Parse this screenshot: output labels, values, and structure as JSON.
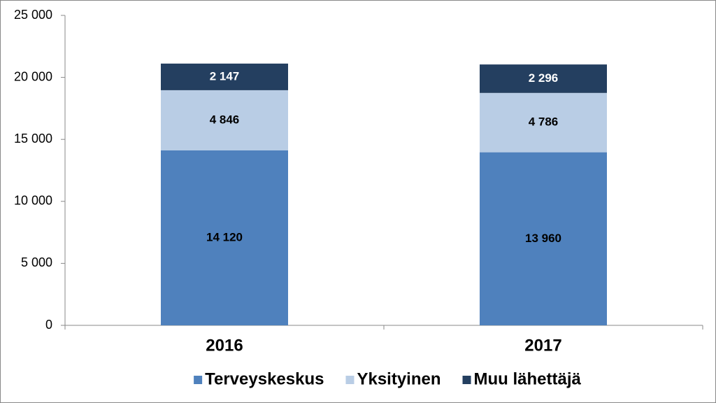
{
  "chart_data": {
    "type": "stacked-bar",
    "categories": [
      "2016",
      "2017"
    ],
    "series": [
      {
        "name": "Terveyskeskus",
        "color": "#4f81bd",
        "values": [
          14120,
          13960
        ],
        "value_labels": [
          "14 120",
          "13 960"
        ]
      },
      {
        "name": "Yksityinen",
        "color": "#b9cde5",
        "values": [
          4846,
          4786
        ],
        "value_labels": [
          "4 846",
          "4 786"
        ]
      },
      {
        "name": "Muu lähettäjä",
        "color": "#243f60",
        "values": [
          2147,
          2296
        ],
        "value_labels": [
          "2 147",
          "2 296"
        ]
      }
    ],
    "ylim": [
      0,
      25000
    ],
    "yticks": [
      0,
      {
        "value": 5000,
        "label": "5 000"
      },
      {
        "value": 10000,
        "label": "10 000"
      },
      {
        "value": 15000,
        "label": "15 000"
      },
      {
        "value": 20000,
        "label": "20 000"
      },
      {
        "value": 25000,
        "label": "25 000"
      }
    ],
    "grid": false,
    "legend": "bottom"
  }
}
